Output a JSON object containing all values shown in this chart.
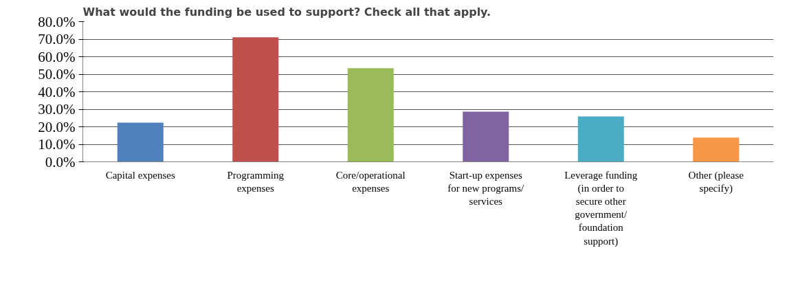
{
  "chart_data": {
    "type": "bar",
    "title": "What would the funding be used to support? Check all that apply.",
    "categories": [
      "Capital expenses",
      "Programming expenses",
      "Core/operational expenses",
      "Start-up expenses for new programs/ services",
      "Leverage funding (in order to secure other government/ foundation support)",
      "Other (please specify)"
    ],
    "values": [
      22.4,
      71.1,
      53.4,
      28.6,
      25.9,
      13.8
    ],
    "colors": [
      "#4f81bd",
      "#c0504d",
      "#9bbb59",
      "#8064a2",
      "#4bacc6",
      "#f79646"
    ],
    "ylim": [
      0,
      80
    ],
    "yticks": [
      {
        "value": 0,
        "label": "0.0%"
      },
      {
        "value": 10,
        "label": "10.0%"
      },
      {
        "value": 20,
        "label": "20.0%"
      },
      {
        "value": 30,
        "label": "30.0%"
      },
      {
        "value": 40,
        "label": "40.0%"
      },
      {
        "value": 50,
        "label": "50.0%"
      },
      {
        "value": 60,
        "label": "60.0%"
      },
      {
        "value": 70,
        "label": "70.0%"
      },
      {
        "value": 80,
        "label": "80.0%"
      }
    ],
    "grid": "y"
  }
}
